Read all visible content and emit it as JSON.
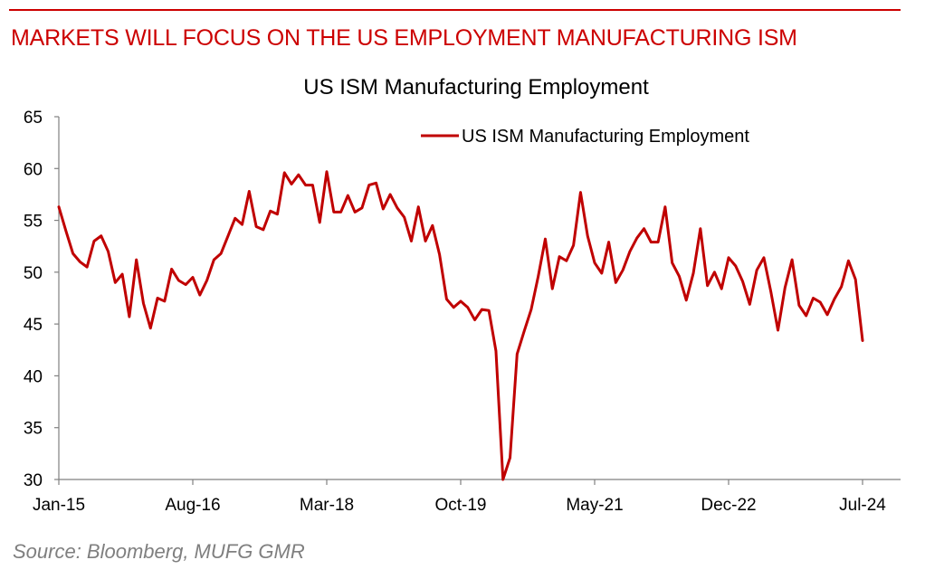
{
  "header": {
    "headline": "MARKETS WILL FOCUS ON THE US EMPLOYMENT MANUFACTURING ISM"
  },
  "footer": {
    "source": "Source: Bloomberg, MUFG GMR"
  },
  "colors": {
    "accent": "#cc0000",
    "series": "#c00000",
    "source_text": "#7f7f7f"
  },
  "chart_data": {
    "type": "line",
    "title": "US ISM Manufacturing Employment",
    "xlabel": "",
    "ylabel": "",
    "ylim": [
      30,
      65
    ],
    "yticks": [
      30,
      35,
      40,
      45,
      50,
      55,
      60,
      65
    ],
    "xticks": [
      "Jan-15",
      "Aug-16",
      "Mar-18",
      "Oct-19",
      "May-21",
      "Dec-22",
      "Jul-24"
    ],
    "x_start": "2015-01",
    "x_end": "2024-07",
    "grid": false,
    "legend_position": "top-right",
    "series": [
      {
        "name": "US ISM Manufacturing Employment",
        "x": [
          "2015-01",
          "2015-02",
          "2015-03",
          "2015-04",
          "2015-05",
          "2015-06",
          "2015-07",
          "2015-08",
          "2015-09",
          "2015-10",
          "2015-11",
          "2015-12",
          "2016-01",
          "2016-02",
          "2016-03",
          "2016-04",
          "2016-05",
          "2016-06",
          "2016-07",
          "2016-08",
          "2016-09",
          "2016-10",
          "2016-11",
          "2016-12",
          "2017-01",
          "2017-02",
          "2017-03",
          "2017-04",
          "2017-05",
          "2017-06",
          "2017-07",
          "2017-08",
          "2017-09",
          "2017-10",
          "2017-11",
          "2017-12",
          "2018-01",
          "2018-02",
          "2018-03",
          "2018-04",
          "2018-05",
          "2018-06",
          "2018-07",
          "2018-08",
          "2018-09",
          "2018-10",
          "2018-11",
          "2018-12",
          "2019-01",
          "2019-02",
          "2019-03",
          "2019-04",
          "2019-05",
          "2019-06",
          "2019-07",
          "2019-08",
          "2019-09",
          "2019-10",
          "2019-11",
          "2019-12",
          "2020-01",
          "2020-02",
          "2020-03",
          "2020-04",
          "2020-05",
          "2020-06",
          "2020-07",
          "2020-08",
          "2020-09",
          "2020-10",
          "2020-11",
          "2020-12",
          "2021-01",
          "2021-02",
          "2021-03",
          "2021-04",
          "2021-05",
          "2021-06",
          "2021-07",
          "2021-08",
          "2021-09",
          "2021-10",
          "2021-11",
          "2021-12",
          "2022-01",
          "2022-02",
          "2022-03",
          "2022-04",
          "2022-05",
          "2022-06",
          "2022-07",
          "2022-08",
          "2022-09",
          "2022-10",
          "2022-11",
          "2022-12",
          "2023-01",
          "2023-02",
          "2023-03",
          "2023-04",
          "2023-05",
          "2023-06",
          "2023-07",
          "2023-08",
          "2023-09",
          "2023-10",
          "2023-11",
          "2023-12",
          "2024-01",
          "2024-02",
          "2024-03",
          "2024-04",
          "2024-05",
          "2024-06",
          "2024-07"
        ],
        "values": [
          56.3,
          54.0,
          51.8,
          51.0,
          50.5,
          53.0,
          53.5,
          52.0,
          49.0,
          49.8,
          45.7,
          51.2,
          47.0,
          44.6,
          47.5,
          47.2,
          50.3,
          49.2,
          48.8,
          49.5,
          47.8,
          49.2,
          51.2,
          51.8,
          53.5,
          55.2,
          54.6,
          57.8,
          54.4,
          54.1,
          55.9,
          55.6,
          59.6,
          58.5,
          59.4,
          58.4,
          58.4,
          54.8,
          59.7,
          55.8,
          55.8,
          57.4,
          55.8,
          56.2,
          58.4,
          58.6,
          56.1,
          57.5,
          56.2,
          55.3,
          53.0,
          56.3,
          53.0,
          54.5,
          51.7,
          47.4,
          46.6,
          47.2,
          46.6,
          45.4,
          46.4,
          46.3,
          42.4,
          27.5,
          32.1,
          42.1,
          44.3,
          46.4,
          49.6,
          53.2,
          48.4,
          51.5,
          51.1,
          52.6,
          57.7,
          53.5,
          50.9,
          49.9,
          52.9,
          49.0,
          50.2,
          52.0,
          53.3,
          54.2,
          52.9,
          52.9,
          56.3,
          50.9,
          49.6,
          47.3,
          49.9,
          54.2,
          48.7,
          50.0,
          48.4,
          51.4,
          50.6,
          49.1,
          46.9,
          50.2,
          51.4,
          48.1,
          44.4,
          48.5,
          51.2,
          46.8,
          45.8,
          47.5,
          47.1,
          45.9,
          47.4,
          48.6,
          51.1,
          49.3,
          43.4
        ]
      }
    ]
  }
}
